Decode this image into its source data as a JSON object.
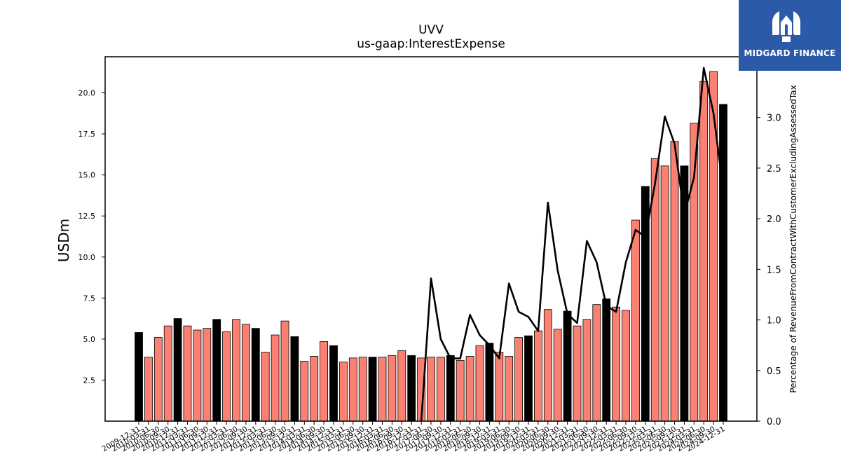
{
  "chart_data": {
    "type": "bar",
    "title": "UVV",
    "subtitle": "us-gaap:InterestExpense",
    "ylabel": "USDm",
    "ylabel_right": "Percentage of RevenueFromContractWithCustomerExcludingAssessedTax",
    "ylim": [
      0,
      22.2
    ],
    "yticks": [
      2.5,
      5.0,
      7.5,
      10.0,
      12.5,
      15.0,
      17.5,
      20.0
    ],
    "ylim_right": [
      0,
      3.6
    ],
    "yticks_right": [
      0.0,
      0.5,
      1.0,
      1.5,
      2.0,
      2.5,
      3.0,
      3.5
    ],
    "grid": false,
    "bar_colors": {
      "annual": "#000000",
      "quarterly": "#fa8072"
    },
    "line_color": "#000000",
    "categories": [
      "2009-12-31",
      "2010-03-31",
      "2010-06-30",
      "2010-09-30",
      "2010-12-31",
      "2011-03-31",
      "2011-06-30",
      "2011-09-30",
      "2011-12-31",
      "2012-03-31",
      "2012-06-30",
      "2012-09-30",
      "2012-12-31",
      "2013-03-31",
      "2013-06-30",
      "2013-09-30",
      "2013-12-31",
      "2014-03-31",
      "2014-06-30",
      "2014-09-30",
      "2014-12-31",
      "2015-03-31",
      "2015-06-30",
      "2015-09-30",
      "2015-12-31",
      "2016-03-31",
      "2016-06-30",
      "2016-09-30",
      "2016-12-31",
      "2017-03-31",
      "2017-06-30",
      "2017-09-30",
      "2017-12-31",
      "2018-03-31",
      "2018-06-30",
      "2018-09-30",
      "2018-12-31",
      "2019-03-31",
      "2019-06-30",
      "2019-09-30",
      "2019-12-31",
      "2020-03-31",
      "2020-06-30",
      "2020-09-30",
      "2020-12-31",
      "2021-03-31",
      "2021-06-30",
      "2021-09-30",
      "2021-12-31",
      "2022-03-31",
      "2022-06-30",
      "2022-09-30",
      "2022-12-31",
      "2023-03-31",
      "2023-06-30",
      "2023-09-30",
      "2023-12-31",
      "2024-03-31",
      "2024-06-30",
      "2024-09-30",
      "2024-12-31"
    ],
    "values": [
      5.4,
      3.9,
      5.1,
      5.8,
      6.25,
      5.8,
      5.55,
      5.65,
      6.2,
      5.45,
      6.2,
      5.9,
      5.65,
      4.2,
      5.25,
      6.1,
      5.15,
      3.65,
      3.95,
      4.85,
      4.6,
      3.6,
      3.85,
      3.9,
      3.9,
      3.9,
      4.0,
      4.3,
      4.0,
      3.85,
      3.9,
      3.9,
      4.0,
      3.7,
      3.95,
      4.6,
      4.75,
      4.2,
      3.95,
      5.1,
      5.2,
      5.5,
      6.8,
      5.6,
      6.7,
      5.8,
      6.2,
      7.1,
      7.45,
      6.95,
      6.75,
      12.25,
      14.3,
      16.0,
      15.55,
      17.05,
      15.55,
      18.15,
      20.7,
      21.3,
      19.3
    ],
    "annual_flags": [
      1,
      0,
      0,
      0,
      1,
      0,
      0,
      0,
      1,
      0,
      0,
      0,
      1,
      0,
      0,
      0,
      1,
      0,
      0,
      0,
      1,
      0,
      0,
      0,
      1,
      0,
      0,
      0,
      1,
      0,
      0,
      0,
      1,
      0,
      0,
      0,
      1,
      0,
      0,
      0,
      1,
      0,
      0,
      0,
      1,
      0,
      0,
      0,
      1,
      0,
      0,
      0,
      1,
      0,
      0,
      0,
      1,
      0,
      0,
      0,
      1
    ],
    "line_series": {
      "name": "Percentage of RevenueFromContractWithCustomerExcludingAssessedTax",
      "start_index": 29,
      "values": [
        0.0,
        1.41,
        0.81,
        0.62,
        0.62,
        1.05,
        0.85,
        0.75,
        0.62,
        1.36,
        1.08,
        1.03,
        0.89,
        2.16,
        1.49,
        1.06,
        0.97,
        1.78,
        1.57,
        1.14,
        1.08,
        1.57,
        1.89,
        1.82,
        2.35,
        3.01,
        2.74,
        2.04,
        2.41,
        3.49,
        3.04,
        2.28
      ]
    }
  },
  "logo": {
    "text": "MIDGARD FINANCE"
  }
}
